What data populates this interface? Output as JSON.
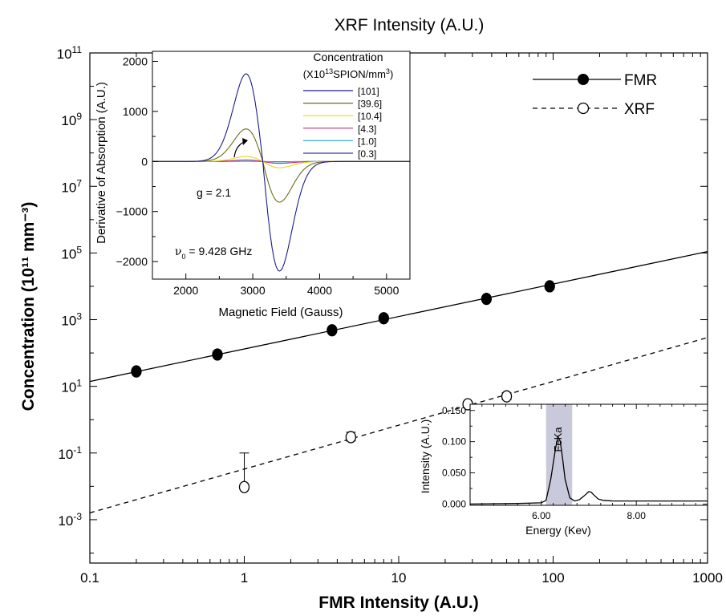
{
  "chart_data": [
    {
      "type": "scatter",
      "title": "XRF Intensity (A.U.)",
      "xlabel": "FMR Intensity (A.U.)",
      "ylabel": "Concentration (10¹¹ mm⁻³)",
      "x_scale": "log",
      "y_scale": "log",
      "xlim": [
        0.1,
        1000
      ],
      "ylim": [
        5e-05,
        100000000000
      ],
      "x_ticks": [
        "0.1",
        "1",
        "10",
        "100",
        "1000"
      ],
      "y_ticks": [
        {
          "base": "10",
          "exp": "11",
          "value": 100000000000
        },
        {
          "base": "10",
          "exp": "9",
          "value": 1000000000
        },
        {
          "base": "10",
          "exp": "7",
          "value": 10000000
        },
        {
          "base": "10",
          "exp": "5",
          "value": 100000
        },
        {
          "base": "10",
          "exp": "3",
          "value": 1000
        },
        {
          "base": "10",
          "exp": "1",
          "value": 10
        },
        {
          "base": "10",
          "exp": "-1",
          "value": 0.1
        },
        {
          "base": "10",
          "exp": "-3",
          "value": 0.001
        }
      ],
      "legend_position": "top-right",
      "series": [
        {
          "name": "FMR",
          "marker": "filled-circle",
          "line": "solid",
          "color": "#000000",
          "x": [
            0.2,
            0.67,
            3.7,
            8.0,
            37.0,
            95.0
          ],
          "y": [
            28,
            90,
            480,
            1100,
            4200,
            10000
          ],
          "fit": {
            "x": [
              0.1,
              1000
            ],
            "y": [
              14,
              110000
            ]
          }
        },
        {
          "name": "XRF",
          "marker": "open-circle",
          "line": "dashed",
          "color": "#000000",
          "x": [
            1.0,
            4.9,
            28.0,
            50.0
          ],
          "y": [
            0.0095,
            0.3,
            2.9,
            5.0
          ],
          "error_upper": [
            0.1,
            0.42,
            3.5,
            6.4
          ],
          "error_lower": [
            0.0095,
            0.23,
            2.4,
            4.0
          ],
          "fit": {
            "x": [
              0.1,
              1000
            ],
            "y": [
              0.0016,
              290
            ]
          }
        }
      ]
    },
    {
      "type": "line",
      "title": "",
      "xlabel": "Magnetic Field (Gauss)",
      "ylabel": "Derivative of Absorption (A.U.)",
      "xlim": [
        1500,
        5350
      ],
      "ylim": [
        -2350,
        2200
      ],
      "x_ticks": [
        2000,
        3000,
        4000,
        5000
      ],
      "y_ticks": [
        2000,
        1000,
        0,
        -1000,
        -2000
      ],
      "y_tick_labels": [
        "2000",
        "1000",
        "0",
        "−1000",
        "−2000"
      ],
      "legend_title_line1": "Concentration",
      "legend_title_line2_prefix": "(X10",
      "legend_title_line2_exp": "13",
      "legend_title_line2_suffix": "SPION/mm",
      "legend_title_line2_exp2": "3",
      "legend_title_line2_end": ")",
      "annotation_g": "g = 2.1",
      "annotation_nu_symbol": "ν",
      "annotation_nu_sub": "0",
      "annotation_nu_value": " = 9.428 GHz",
      "lineshape": {
        "center": 3150,
        "width": 250
      },
      "series": [
        {
          "name": "[101]",
          "color": "#1c1c8c",
          "amplitude": 1750
        },
        {
          "name": "[39.6]",
          "color": "#6b6b1c",
          "amplitude": 650
        },
        {
          "name": "[10.4]",
          "color": "#e8d81c",
          "amplitude": 100
        },
        {
          "name": "[4.3]",
          "color": "#c8327a",
          "amplitude": 30
        },
        {
          "name": "[1.0]",
          "color": "#3fb6d8",
          "amplitude": 8
        },
        {
          "name": "[0.3]",
          "color": "#3a3aa0",
          "amplitude": 3
        }
      ]
    },
    {
      "type": "line",
      "title": "",
      "xlabel": "Energy (Kev)",
      "ylabel": "Intensity (A.U.)",
      "xlim": [
        4.5,
        9.5
      ],
      "ylim": [
        -0.002,
        0.16
      ],
      "x_ticks": [
        6.0,
        8.0
      ],
      "x_tick_labels": [
        "6.00",
        "8.00"
      ],
      "y_ticks": [
        0.0,
        0.05,
        0.1,
        0.15
      ],
      "y_tick_labels": [
        "0.000",
        "0.050",
        "0.100",
        "0.150"
      ],
      "highlight": {
        "x": [
          6.1,
          6.65
        ],
        "color": "#c9c9dc"
      },
      "peak_label": "FeKa",
      "x": [
        4.5,
        5.5,
        6.0,
        6.1,
        6.2,
        6.3,
        6.35,
        6.4,
        6.45,
        6.5,
        6.6,
        6.7,
        6.8,
        6.9,
        7.0,
        7.05,
        7.1,
        7.2,
        7.3,
        7.5,
        8.0,
        9.0,
        9.5
      ],
      "y": [
        0.0,
        0.001,
        0.002,
        0.006,
        0.04,
        0.09,
        0.108,
        0.1,
        0.072,
        0.04,
        0.01,
        0.005,
        0.007,
        0.013,
        0.02,
        0.019,
        0.015,
        0.008,
        0.006,
        0.005,
        0.005,
        0.005,
        0.005
      ]
    }
  ]
}
